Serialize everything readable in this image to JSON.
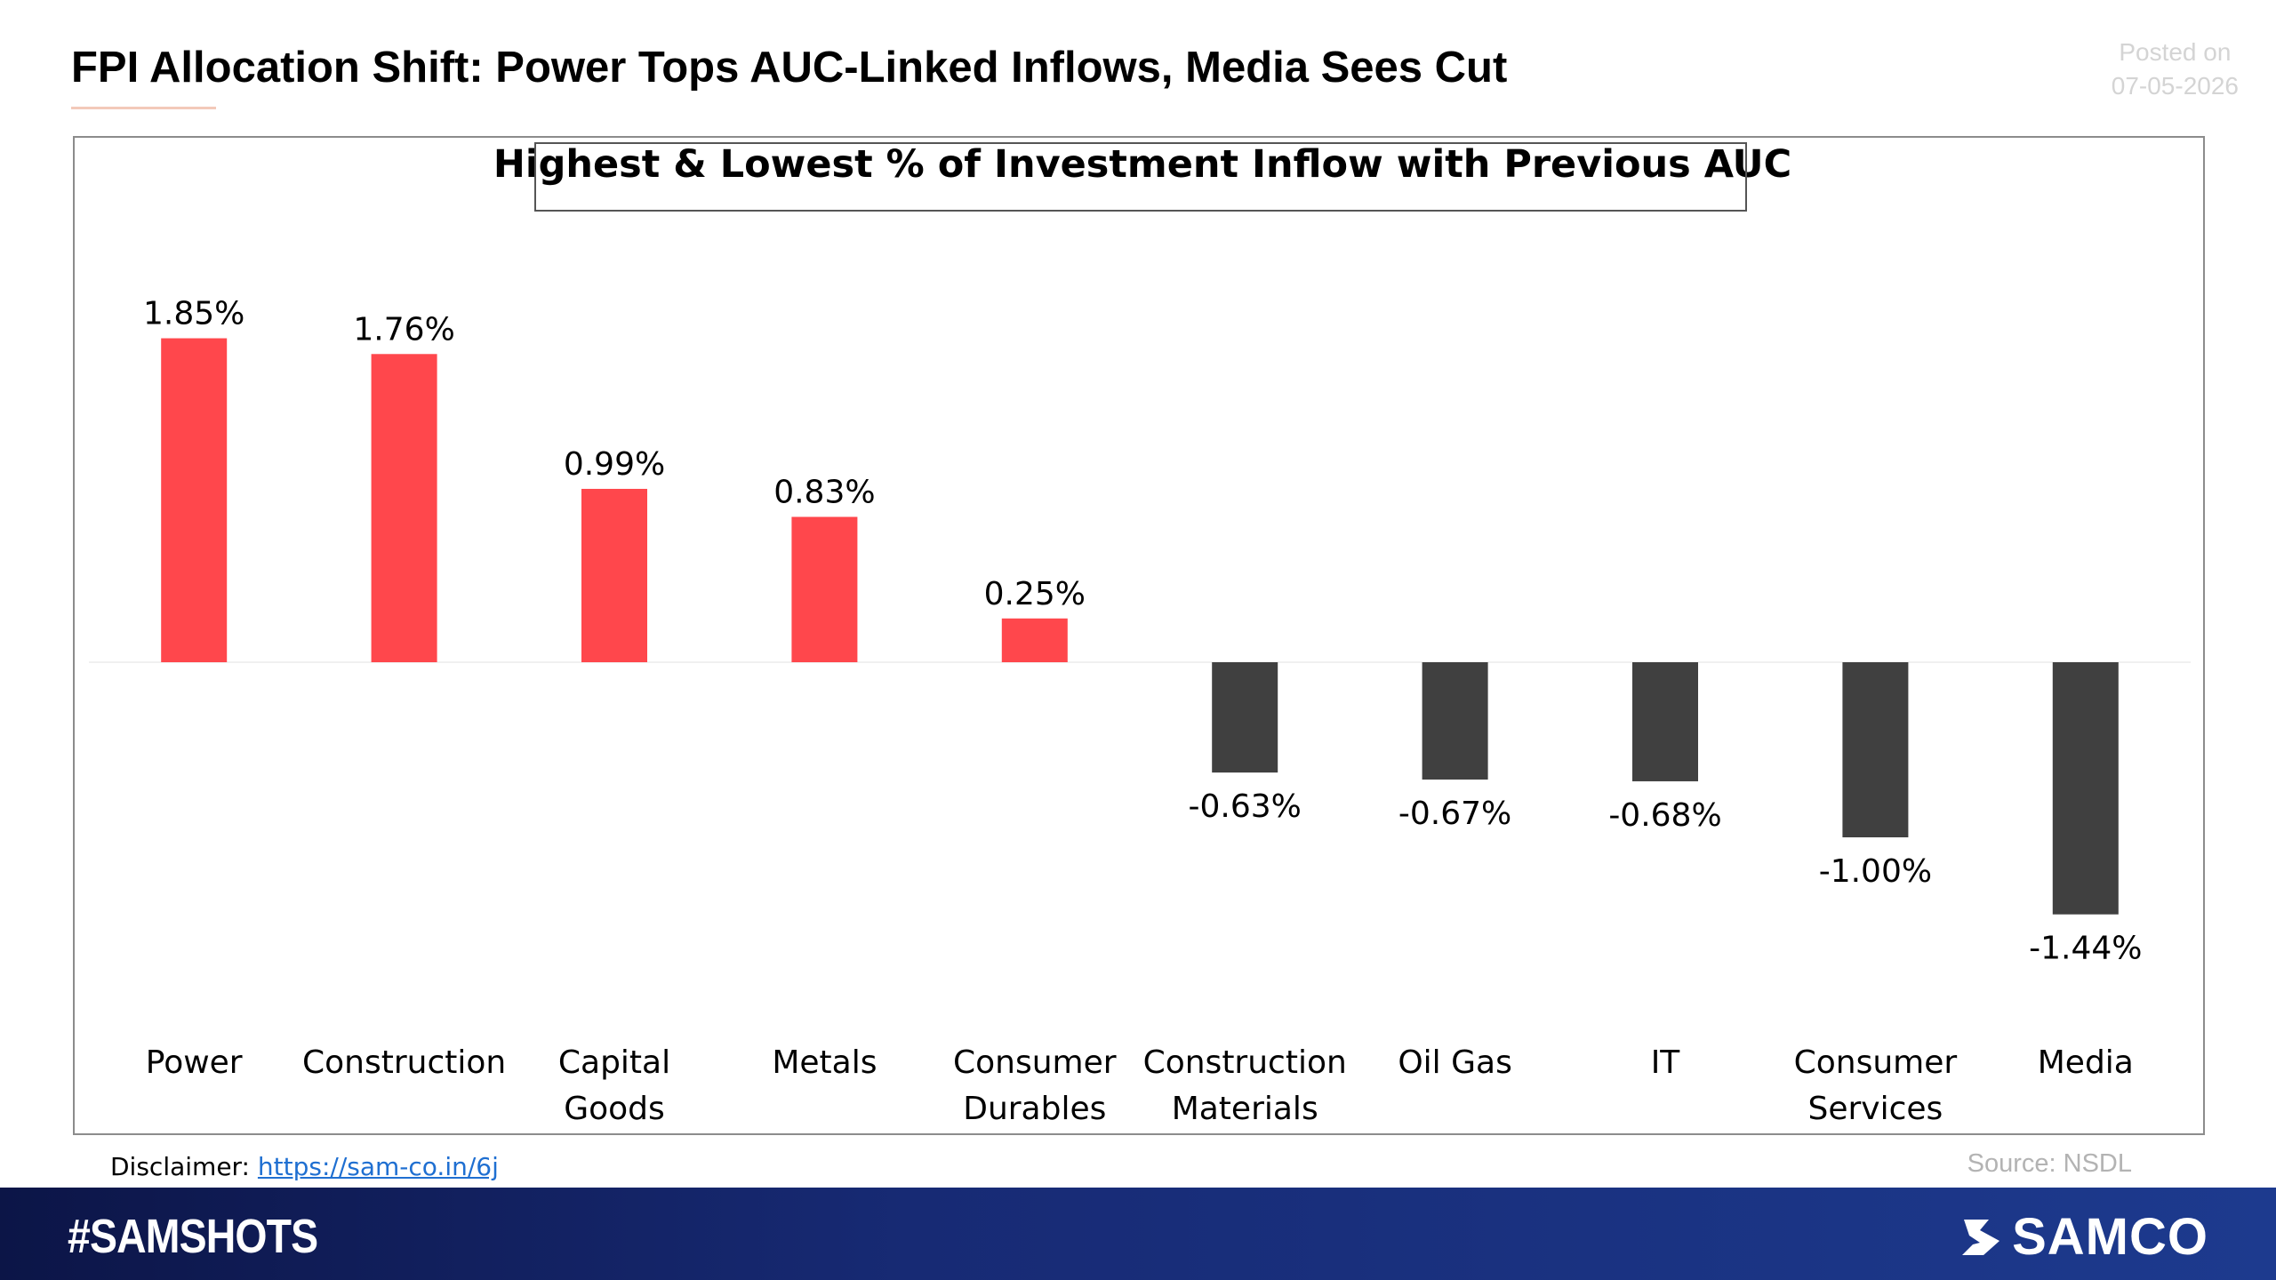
{
  "header": {
    "title": "FPI Allocation Shift: Power Tops AUC-Linked Inflows, Media Sees Cut",
    "posted_label": "Posted on",
    "posted_date": "07-05-2026"
  },
  "chart_data": {
    "type": "bar",
    "title": "Highest & Lowest % of Investment Inflow with Previous AUC",
    "xlabel": "",
    "ylabel": "",
    "categories": [
      [
        "Power"
      ],
      [
        "Construction"
      ],
      [
        "Capital",
        "Goods"
      ],
      [
        "Metals"
      ],
      [
        "Consumer",
        "Durables"
      ],
      [
        "Construction",
        "Materials"
      ],
      [
        "Oil Gas"
      ],
      [
        "IT"
      ],
      [
        "Consumer",
        "Services"
      ],
      [
        "Media"
      ]
    ],
    "values": [
      1.85,
      1.76,
      0.99,
      0.83,
      0.25,
      -0.63,
      -0.67,
      -0.68,
      -1.0,
      -1.44
    ],
    "labels": [
      "1.85%",
      "1.76%",
      "0.99%",
      "0.83%",
      "0.25%",
      "-0.63%",
      "-0.67%",
      "-0.68%",
      "-1.00%",
      "-1.44%"
    ],
    "ylim": [
      -1.44,
      1.85
    ],
    "grid": false,
    "legend": "none",
    "colors": {
      "positive": "#ff474c",
      "negative": "#404040",
      "axis": "#f0f0f0"
    }
  },
  "footer": {
    "disclaimer_label": "Disclaimer:",
    "disclaimer_link": "https://sam-co.in/6j",
    "source": "Source: NSDL",
    "hashtag": "#SAMSHOTS",
    "brand": "SAMCO"
  }
}
